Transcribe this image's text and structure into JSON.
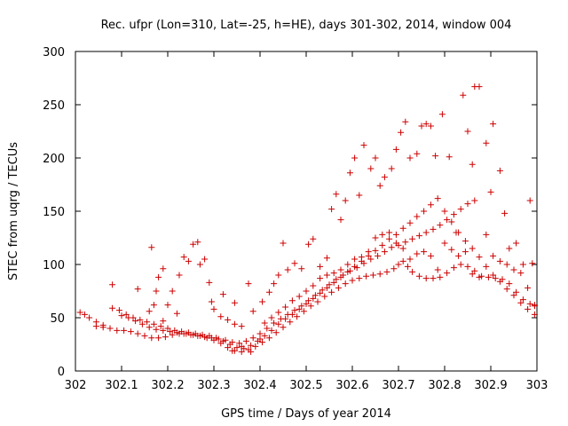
{
  "chart_data": {
    "type": "scatter",
    "title": "Rec. ufpr (Lon=310, Lat=-25, h=HE), days 301-302, 2014, window 004",
    "xlabel": "GPS time / Days of year 2014",
    "ylabel": "STEC from uqrg / TECUs",
    "xlim": [
      302,
      303
    ],
    "ylim": [
      0,
      300
    ],
    "grid": false,
    "legend": "none",
    "marker": "plus",
    "color": "#cc0000",
    "x_ticks": [
      "302",
      "302.1",
      "302.2",
      "302.3",
      "302.4",
      "302.5",
      "302.6",
      "302.7",
      "302.8",
      "302.9",
      "303"
    ],
    "y_ticks": [
      "0",
      "50",
      "100",
      "150",
      "200",
      "250",
      "300"
    ],
    "series": [
      {
        "points": [
          [
            302.01,
            55
          ],
          [
            302.03,
            50
          ],
          [
            302.045,
            46
          ],
          [
            302.06,
            43
          ],
          [
            302.075,
            40
          ],
          [
            302.09,
            38
          ],
          [
            302.105,
            38
          ],
          [
            302.12,
            37
          ],
          [
            302.135,
            35
          ],
          [
            302.15,
            33
          ],
          [
            302.165,
            31
          ],
          [
            302.18,
            31
          ],
          [
            302.195,
            32
          ],
          [
            302.21,
            34
          ],
          [
            302.225,
            35
          ],
          [
            302.24,
            35
          ],
          [
            302.255,
            34
          ],
          [
            302.27,
            33
          ],
          [
            302.285,
            31
          ],
          [
            302.3,
            29
          ],
          [
            302.315,
            26
          ],
          [
            302.33,
            22
          ],
          [
            302.345,
            19
          ],
          [
            302.36,
            18
          ],
          [
            302.375,
            20
          ],
          [
            302.39,
            23
          ],
          [
            302.405,
            27
          ],
          [
            302.42,
            31
          ],
          [
            302.435,
            36
          ],
          [
            302.45,
            41
          ],
          [
            302.465,
            46
          ],
          [
            302.48,
            51
          ],
          [
            302.495,
            56
          ],
          [
            302.51,
            61
          ],
          [
            302.525,
            65
          ],
          [
            302.54,
            70
          ],
          [
            302.555,
            74
          ],
          [
            302.57,
            78
          ],
          [
            302.585,
            82
          ],
          [
            302.6,
            85
          ],
          [
            302.615,
            87
          ],
          [
            302.63,
            89
          ],
          [
            302.645,
            90
          ],
          [
            302.66,
            91
          ],
          [
            302.675,
            93
          ],
          [
            302.69,
            96
          ],
          [
            302.7,
            100
          ],
          [
            302.71,
            103
          ],
          [
            302.72,
            98
          ],
          [
            302.73,
            93
          ],
          [
            302.745,
            89
          ],
          [
            302.76,
            87
          ],
          [
            302.775,
            87
          ],
          [
            302.79,
            88
          ],
          [
            302.805,
            92
          ],
          [
            302.82,
            97
          ],
          [
            302.835,
            100
          ],
          [
            302.85,
            98
          ],
          [
            302.865,
            94
          ],
          [
            302.88,
            89
          ],
          [
            302.895,
            88
          ],
          [
            302.91,
            87
          ],
          [
            302.925,
            86
          ],
          [
            302.94,
            82
          ],
          [
            302.955,
            74
          ],
          [
            302.97,
            67
          ],
          [
            302.985,
            63
          ],
          [
            302.995,
            61
          ],
          [
            302.08,
            59
          ],
          [
            302.095,
            57
          ],
          [
            302.11,
            53
          ],
          [
            302.125,
            50
          ],
          [
            302.14,
            48
          ],
          [
            302.155,
            46
          ],
          [
            302.17,
            44
          ],
          [
            302.185,
            42
          ],
          [
            302.2,
            40
          ],
          [
            302.215,
            38
          ],
          [
            302.23,
            37
          ],
          [
            302.245,
            36
          ],
          [
            302.26,
            35
          ],
          [
            302.275,
            34
          ],
          [
            302.29,
            33
          ],
          [
            302.305,
            31
          ],
          [
            302.32,
            28
          ],
          [
            302.335,
            25
          ],
          [
            302.35,
            22
          ],
          [
            302.365,
            21
          ],
          [
            302.38,
            24
          ],
          [
            302.395,
            28
          ],
          [
            302.41,
            33
          ],
          [
            302.425,
            38
          ],
          [
            302.44,
            44
          ],
          [
            302.455,
            49
          ],
          [
            302.47,
            53
          ],
          [
            302.485,
            58
          ],
          [
            302.5,
            63
          ],
          [
            302.515,
            68
          ],
          [
            302.53,
            73
          ],
          [
            302.545,
            78
          ],
          [
            302.56,
            83
          ],
          [
            302.575,
            88
          ],
          [
            302.59,
            93
          ],
          [
            302.605,
            98
          ],
          [
            302.62,
            103
          ],
          [
            302.635,
            108
          ],
          [
            302.65,
            113
          ],
          [
            302.665,
            118
          ],
          [
            302.68,
            124
          ],
          [
            302.695,
            128
          ],
          [
            302.71,
            134
          ],
          [
            302.725,
            139
          ],
          [
            302.74,
            145
          ],
          [
            302.755,
            150
          ],
          [
            302.77,
            156
          ],
          [
            302.785,
            162
          ],
          [
            302.8,
            150
          ],
          [
            302.815,
            140
          ],
          [
            302.83,
            130
          ],
          [
            302.845,
            122
          ],
          [
            302.86,
            115
          ],
          [
            302.875,
            107
          ],
          [
            302.89,
            98
          ],
          [
            302.905,
            90
          ],
          [
            302.92,
            84
          ],
          [
            302.935,
            77
          ],
          [
            302.95,
            71
          ],
          [
            302.965,
            64
          ],
          [
            302.98,
            58
          ],
          [
            302.995,
            53
          ],
          [
            302.1,
            52
          ],
          [
            302.115,
            50
          ],
          [
            302.13,
            47
          ],
          [
            302.145,
            44
          ],
          [
            302.16,
            41
          ],
          [
            302.175,
            39
          ],
          [
            302.19,
            38
          ],
          [
            302.205,
            37
          ],
          [
            302.22,
            36
          ],
          [
            302.235,
            35
          ],
          [
            302.25,
            34
          ],
          [
            302.265,
            33
          ],
          [
            302.28,
            32
          ],
          [
            302.295,
            31
          ],
          [
            302.31,
            30
          ],
          [
            302.325,
            29
          ],
          [
            302.34,
            27
          ],
          [
            302.355,
            26
          ],
          [
            302.37,
            28
          ],
          [
            302.385,
            31
          ],
          [
            302.4,
            35
          ],
          [
            302.415,
            40
          ],
          [
            302.43,
            45
          ],
          [
            302.445,
            49
          ],
          [
            302.46,
            53
          ],
          [
            302.475,
            57
          ],
          [
            302.49,
            61
          ],
          [
            302.505,
            66
          ],
          [
            302.52,
            71
          ],
          [
            302.535,
            76
          ],
          [
            302.55,
            81
          ],
          [
            302.565,
            86
          ],
          [
            302.58,
            90
          ],
          [
            302.595,
            94
          ],
          [
            302.61,
            97
          ],
          [
            302.625,
            101
          ],
          [
            302.64,
            105
          ],
          [
            302.655,
            108
          ],
          [
            302.67,
            112
          ],
          [
            302.685,
            116
          ],
          [
            302.7,
            118
          ],
          [
            302.715,
            121
          ],
          [
            302.73,
            124
          ],
          [
            302.745,
            127
          ],
          [
            302.76,
            130
          ],
          [
            302.775,
            133
          ],
          [
            302.79,
            137
          ],
          [
            302.805,
            142
          ],
          [
            302.82,
            147
          ],
          [
            302.835,
            152
          ],
          [
            302.85,
            157
          ],
          [
            302.865,
            160
          ],
          [
            302.16,
            56
          ],
          [
            302.17,
            62
          ],
          [
            302.175,
            75
          ],
          [
            302.18,
            88
          ],
          [
            302.19,
            96
          ],
          [
            302.2,
            62
          ],
          [
            302.21,
            75
          ],
          [
            302.225,
            90
          ],
          [
            302.235,
            107
          ],
          [
            302.245,
            103
          ],
          [
            302.255,
            119
          ],
          [
            302.265,
            121
          ],
          [
            302.27,
            100
          ],
          [
            302.28,
            105
          ],
          [
            302.29,
            83
          ],
          [
            302.295,
            65
          ],
          [
            302.3,
            58
          ],
          [
            302.315,
            51
          ],
          [
            302.33,
            48
          ],
          [
            302.345,
            44
          ],
          [
            302.36,
            42
          ],
          [
            302.375,
            82
          ],
          [
            302.385,
            56
          ],
          [
            302.405,
            65
          ],
          [
            302.42,
            74
          ],
          [
            302.43,
            82
          ],
          [
            302.44,
            90
          ],
          [
            302.45,
            120
          ],
          [
            302.46,
            95
          ],
          [
            302.475,
            101
          ],
          [
            302.49,
            96
          ],
          [
            302.505,
            119
          ],
          [
            302.515,
            124
          ],
          [
            302.53,
            98
          ],
          [
            302.545,
            106
          ],
          [
            302.555,
            152
          ],
          [
            302.565,
            166
          ],
          [
            302.575,
            142
          ],
          [
            302.585,
            160
          ],
          [
            302.595,
            186
          ],
          [
            302.605,
            200
          ],
          [
            302.615,
            165
          ],
          [
            302.625,
            212
          ],
          [
            302.64,
            190
          ],
          [
            302.65,
            200
          ],
          [
            302.66,
            174
          ],
          [
            302.67,
            182
          ],
          [
            302.685,
            190
          ],
          [
            302.695,
            208
          ],
          [
            302.705,
            224
          ],
          [
            302.715,
            234
          ],
          [
            302.725,
            200
          ],
          [
            302.74,
            204
          ],
          [
            302.75,
            230
          ],
          [
            302.76,
            232
          ],
          [
            302.77,
            230
          ],
          [
            302.78,
            202
          ],
          [
            302.795,
            241
          ],
          [
            302.81,
            201
          ],
          [
            302.825,
            130
          ],
          [
            302.84,
            259
          ],
          [
            302.85,
            225
          ],
          [
            302.86,
            194
          ],
          [
            302.865,
            267
          ],
          [
            302.875,
            267
          ],
          [
            302.89,
            214
          ],
          [
            302.9,
            168
          ],
          [
            302.905,
            232
          ],
          [
            302.92,
            188
          ],
          [
            302.93,
            148
          ],
          [
            302.94,
            115
          ],
          [
            302.955,
            120
          ],
          [
            302.97,
            100
          ],
          [
            302.985,
            160
          ],
          [
            302.99,
            101
          ],
          [
            302.08,
            81
          ],
          [
            302.135,
            77
          ],
          [
            302.165,
            116
          ],
          [
            302.045,
            42
          ],
          [
            302.06,
            41
          ],
          [
            302.02,
            53
          ],
          [
            302.22,
            54
          ],
          [
            302.19,
            47
          ],
          [
            302.345,
            64
          ],
          [
            302.32,
            72
          ],
          [
            302.4,
            30
          ],
          [
            302.38,
            18
          ],
          [
            302.36,
            23
          ],
          [
            302.34,
            19
          ],
          [
            302.41,
            45
          ],
          [
            302.425,
            50
          ],
          [
            302.44,
            55
          ],
          [
            302.455,
            60
          ],
          [
            302.47,
            66
          ],
          [
            302.485,
            70
          ],
          [
            302.5,
            75
          ],
          [
            302.515,
            80
          ],
          [
            302.53,
            87
          ],
          [
            302.545,
            90
          ],
          [
            302.56,
            92
          ],
          [
            302.575,
            95
          ],
          [
            302.59,
            100
          ],
          [
            302.605,
            105
          ],
          [
            302.62,
            107
          ],
          [
            302.635,
            112
          ],
          [
            302.65,
            125
          ],
          [
            302.665,
            128
          ],
          [
            302.68,
            130
          ],
          [
            302.695,
            120
          ],
          [
            302.71,
            115
          ],
          [
            302.725,
            105
          ],
          [
            302.74,
            110
          ],
          [
            302.755,
            112
          ],
          [
            302.77,
            108
          ],
          [
            302.785,
            95
          ],
          [
            302.8,
            120
          ],
          [
            302.815,
            114
          ],
          [
            302.83,
            108
          ],
          [
            302.845,
            112
          ],
          [
            302.86,
            91
          ],
          [
            302.875,
            88
          ],
          [
            302.89,
            128
          ],
          [
            302.905,
            108
          ],
          [
            302.92,
            103
          ],
          [
            302.935,
            100
          ],
          [
            302.95,
            95
          ],
          [
            302.965,
            92
          ],
          [
            302.98,
            78
          ],
          [
            302.995,
            62
          ]
        ]
      }
    ]
  }
}
